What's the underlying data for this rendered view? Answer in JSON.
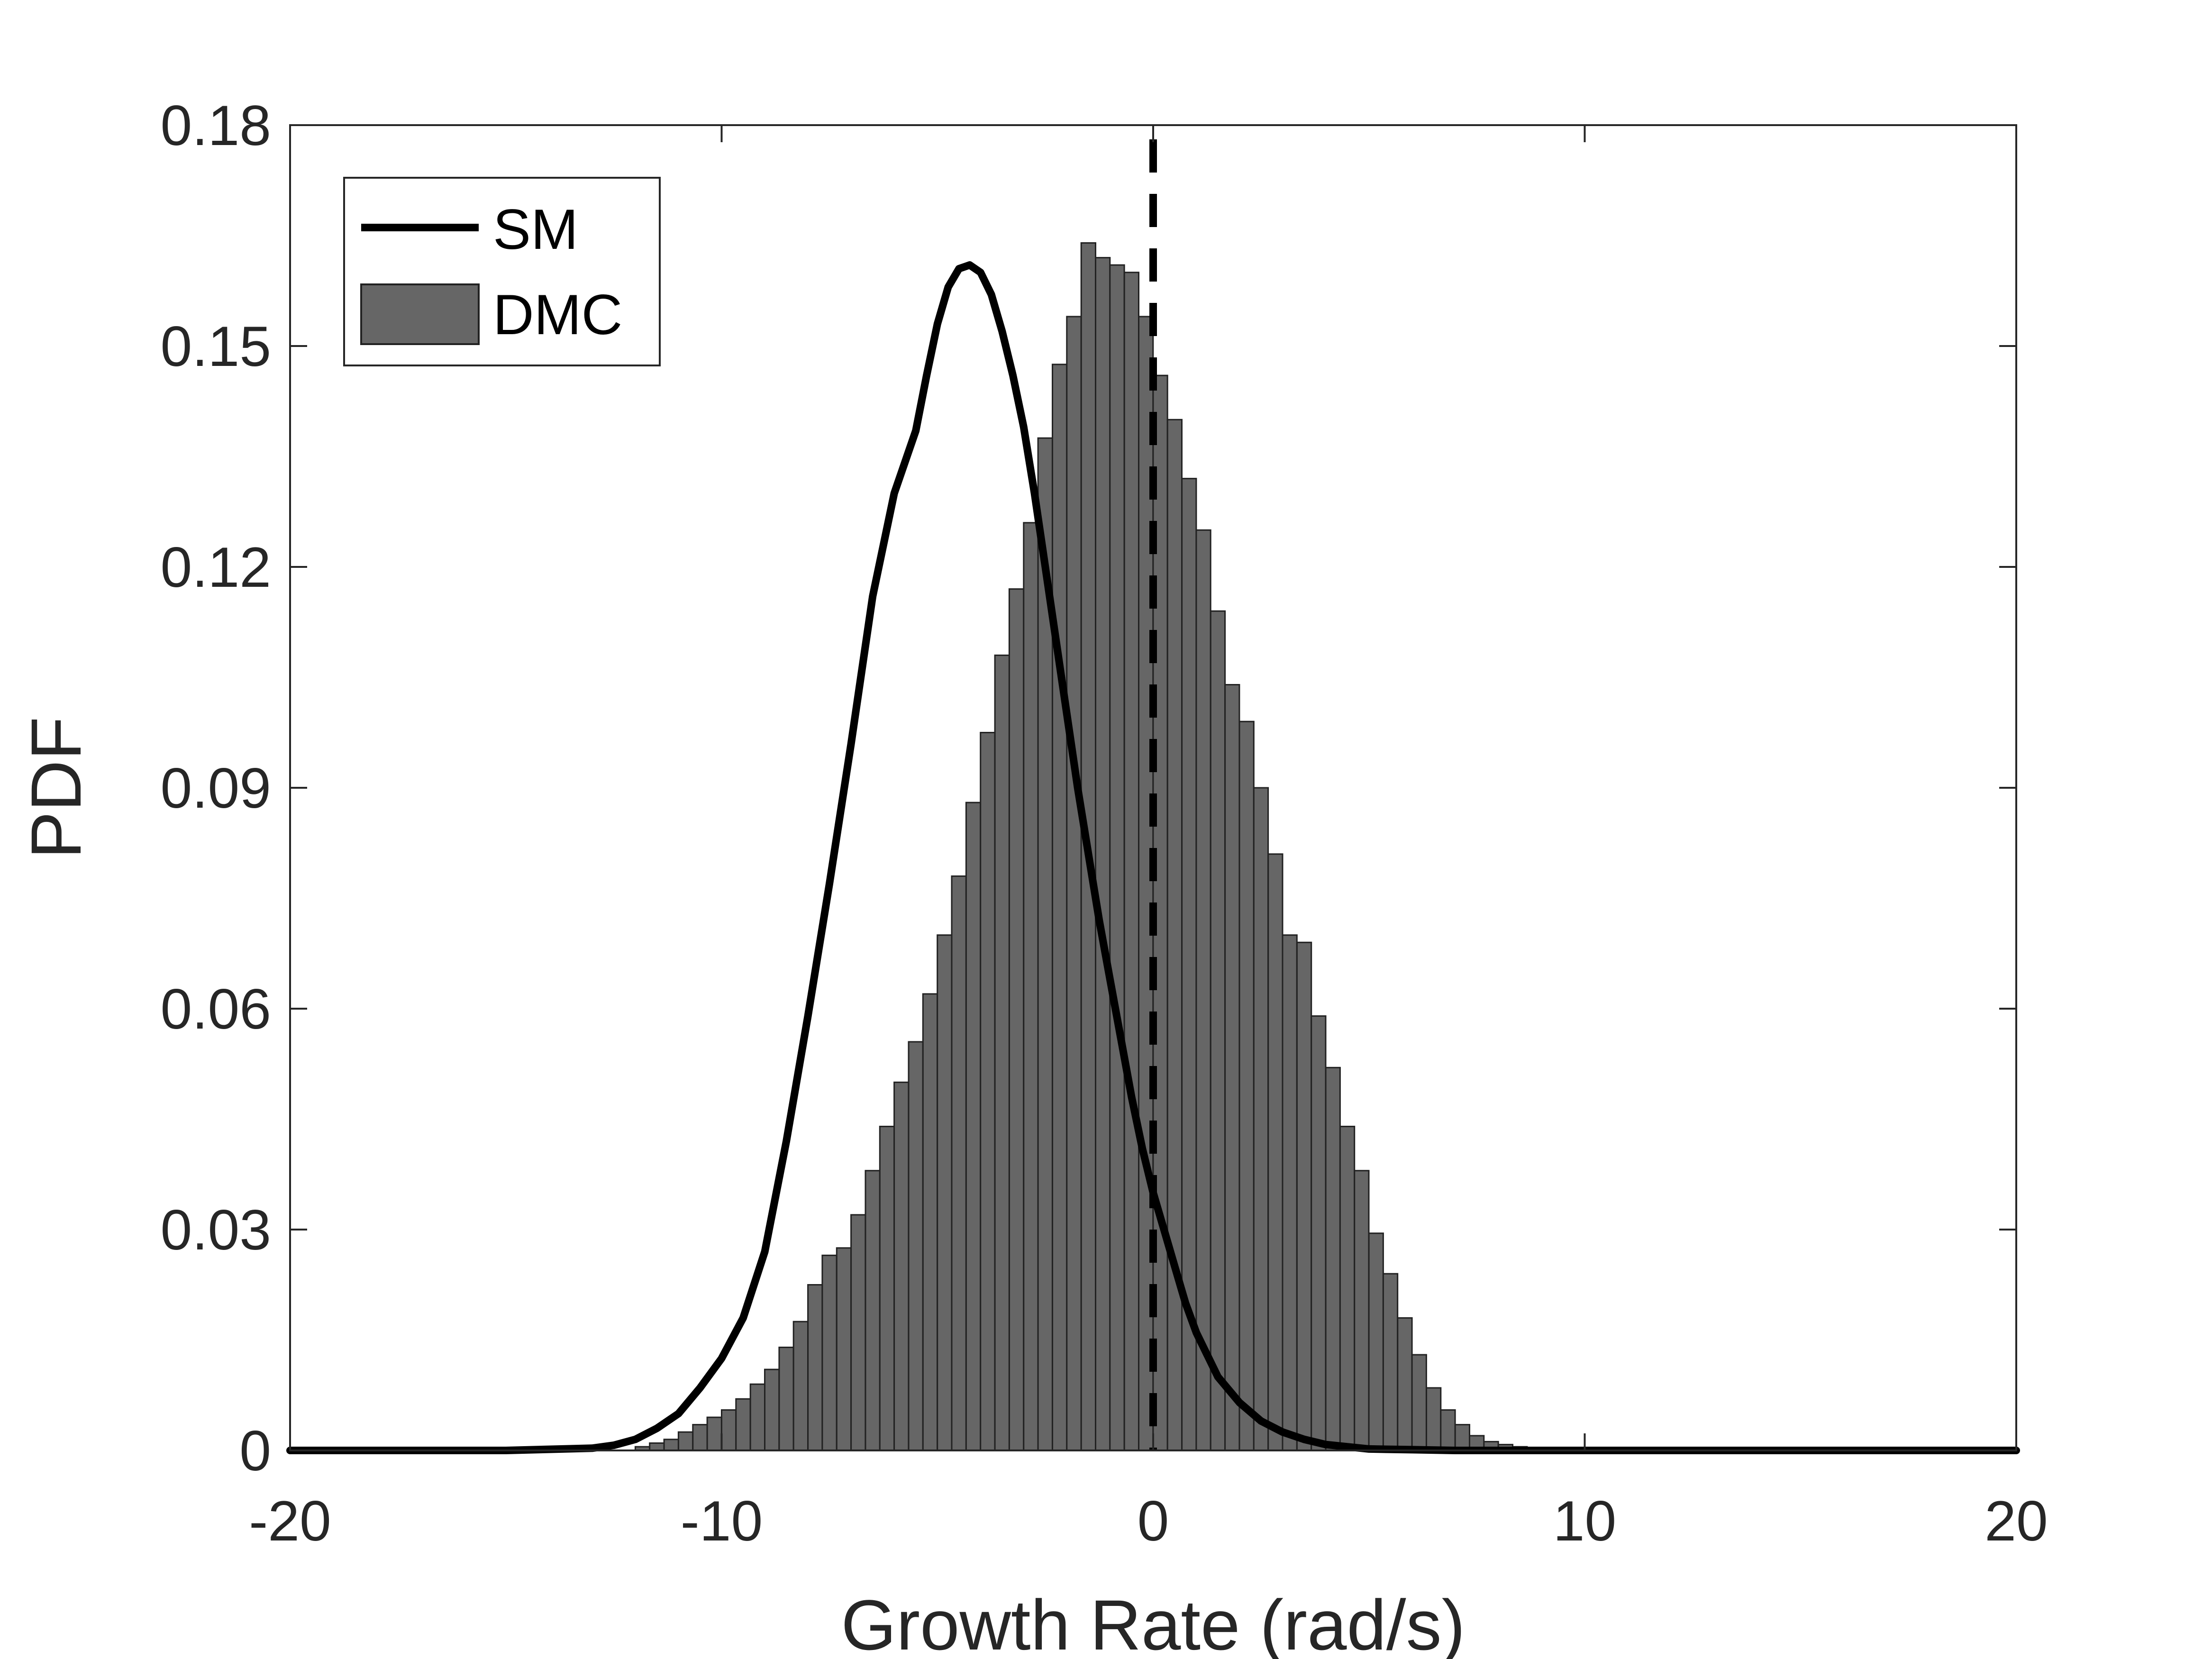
{
  "chart_data": {
    "type": "bar",
    "title": "",
    "xlabel": "Growth Rate (rad/s)",
    "ylabel": "PDF",
    "xlim": [
      -20,
      20
    ],
    "ylim": [
      0,
      0.18
    ],
    "xticks": [
      -20,
      -10,
      0,
      10,
      20
    ],
    "xtick_labels": [
      "-20",
      "-10",
      "0",
      "10",
      "20"
    ],
    "yticks": [
      0,
      0.03,
      0.06,
      0.09,
      0.12,
      0.15,
      0.18
    ],
    "ytick_labels": [
      "0",
      "0.03",
      "0.06",
      "0.09",
      "0.12",
      "0.15",
      "0.18"
    ],
    "grid": false,
    "legend_position": "top-left",
    "legend": [
      {
        "label": "SM",
        "style": "line"
      },
      {
        "label": "DMC",
        "style": "bar"
      }
    ],
    "histogram": {
      "name": "DMC",
      "color": "#666666",
      "edge_color": "#222222",
      "bin_width": 0.3333,
      "bin_start": -12.0,
      "values": [
        0.0005,
        0.001,
        0.0015,
        0.0025,
        0.0035,
        0.0045,
        0.0055,
        0.007,
        0.009,
        0.011,
        0.014,
        0.0175,
        0.0225,
        0.0265,
        0.0275,
        0.032,
        0.038,
        0.044,
        0.05,
        0.0555,
        0.062,
        0.07,
        0.078,
        0.088,
        0.0975,
        0.108,
        0.117,
        0.126,
        0.1375,
        0.1475,
        0.154,
        0.164,
        0.162,
        0.161,
        0.16,
        0.154,
        0.146,
        0.14,
        0.132,
        0.125,
        0.114,
        0.104,
        0.099,
        0.09,
        0.081,
        0.07,
        0.069,
        0.059,
        0.052,
        0.044,
        0.038,
        0.0295,
        0.024,
        0.018,
        0.013,
        0.0085,
        0.0055,
        0.0035,
        0.002,
        0.0012,
        0.0008,
        0.0005
      ]
    },
    "series": [
      {
        "name": "SM",
        "type": "line",
        "color": "#000000",
        "x": [
          -20,
          -15,
          -13,
          -12.5,
          -12,
          -11.5,
          -11,
          -10.5,
          -10,
          -9.5,
          -9,
          -8.5,
          -8,
          -7.5,
          -7,
          -6.5,
          -6,
          -5.5,
          -5.25,
          -5,
          -4.75,
          -4.5,
          -4.25,
          -4,
          -3.75,
          -3.5,
          -3.25,
          -3,
          -2.75,
          -2.5,
          -2.25,
          -2,
          -1.75,
          -1.5,
          -1.25,
          -1,
          -0.75,
          -0.5,
          -0.25,
          0,
          0.25,
          0.5,
          0.75,
          1,
          1.5,
          2,
          2.5,
          3,
          3.5,
          4,
          5,
          6,
          7,
          10,
          15,
          20
        ],
        "y": [
          0,
          0,
          0.0003,
          0.0007,
          0.0015,
          0.003,
          0.005,
          0.0085,
          0.0125,
          0.018,
          0.027,
          0.042,
          0.059,
          0.077,
          0.096,
          0.116,
          0.13,
          0.1385,
          0.146,
          0.153,
          0.158,
          0.1605,
          0.161,
          0.16,
          0.157,
          0.152,
          0.146,
          0.139,
          0.13,
          0.12,
          0.11,
          0.1,
          0.09,
          0.081,
          0.072,
          0.064,
          0.056,
          0.048,
          0.041,
          0.035,
          0.03,
          0.025,
          0.02,
          0.016,
          0.01,
          0.0065,
          0.004,
          0.0025,
          0.0015,
          0.0008,
          0.0002,
          0.0001,
          0,
          0,
          0,
          0
        ]
      }
    ],
    "reference_line": {
      "x": 0,
      "style": "dashed",
      "color": "#000000"
    }
  }
}
